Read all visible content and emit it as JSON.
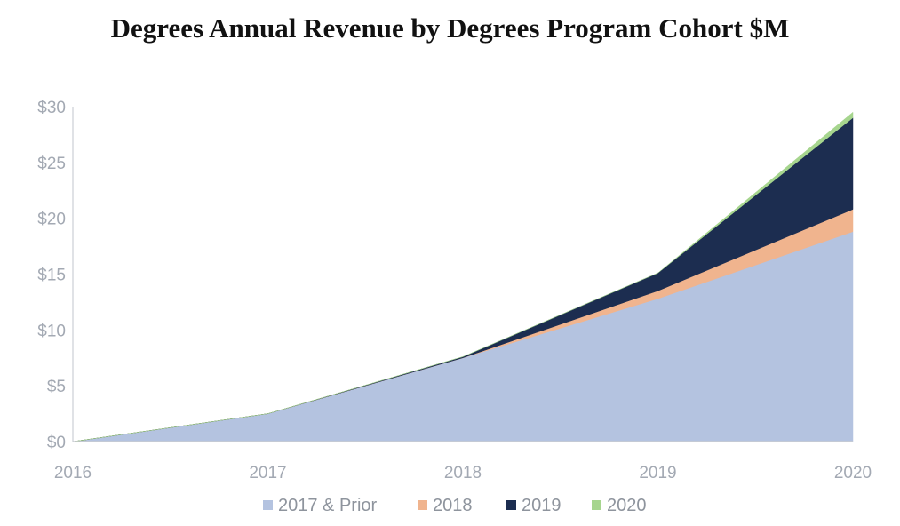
{
  "chart_data": {
    "type": "area",
    "stacked": true,
    "title": "Degrees Annual Revenue by Degrees Program Cohort $M",
    "xlabel": "",
    "ylabel": "",
    "x": [
      "2016",
      "2017",
      "2018",
      "2019",
      "2020"
    ],
    "y_ticks": [
      "$0",
      "$5",
      "$10",
      "$15",
      "$20",
      "$25",
      "$30"
    ],
    "ylim": [
      0,
      30
    ],
    "grid": false,
    "legend_position": "bottom",
    "series": [
      {
        "name": "2017 & Prior",
        "color": "#b4c3e0",
        "values": [
          0,
          2.5,
          7.5,
          12.8,
          18.8
        ]
      },
      {
        "name": "2018",
        "color": "#f0b48e",
        "values": [
          0,
          0,
          0,
          0.7,
          2.0
        ]
      },
      {
        "name": "2019",
        "color": "#1c2d50",
        "values": [
          0,
          0,
          0.1,
          1.6,
          8.2
        ]
      },
      {
        "name": "2020",
        "color": "#a6d58e",
        "values": [
          0,
          0,
          0,
          0,
          0.5
        ]
      }
    ]
  }
}
